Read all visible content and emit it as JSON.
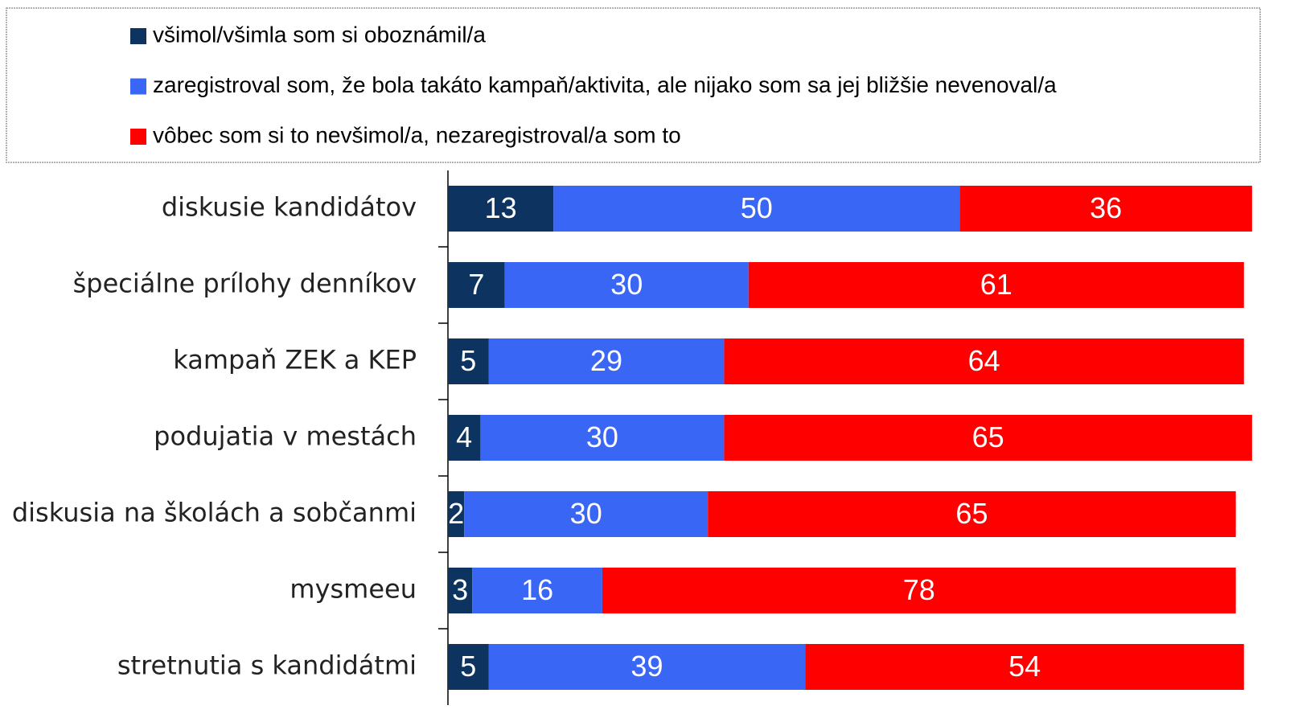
{
  "chart_data": {
    "type": "bar",
    "orientation": "horizontal",
    "stacked": true,
    "categories": [
      "diskusie kandidátov",
      "špeciálne prílohy denníkov",
      "kampaň ZEK a KEP",
      "podujatia v mestách",
      "diskusia na školách a sobčanmi",
      "mysmeeu",
      "stretnutia s kandidátmi"
    ],
    "series": [
      {
        "name": "všimol/všimla som si oboznámil/a",
        "color": "#0d3461",
        "values": [
          13,
          7,
          5,
          4,
          2,
          3,
          5
        ]
      },
      {
        "name": "zaregistroval som, že bola takáto kampaň/aktivita, ale nijako som sa jej bližšie nevenoval/a",
        "color": "#3a66f5",
        "values": [
          50,
          30,
          29,
          30,
          30,
          16,
          39
        ]
      },
      {
        "name": "vôbec som si to nevšimol/a, nezaregistroval/a som to",
        "color": "#ff0000",
        "values": [
          36,
          61,
          64,
          65,
          65,
          78,
          54
        ]
      }
    ],
    "xlim": [
      0,
      100
    ],
    "legend": "top"
  }
}
